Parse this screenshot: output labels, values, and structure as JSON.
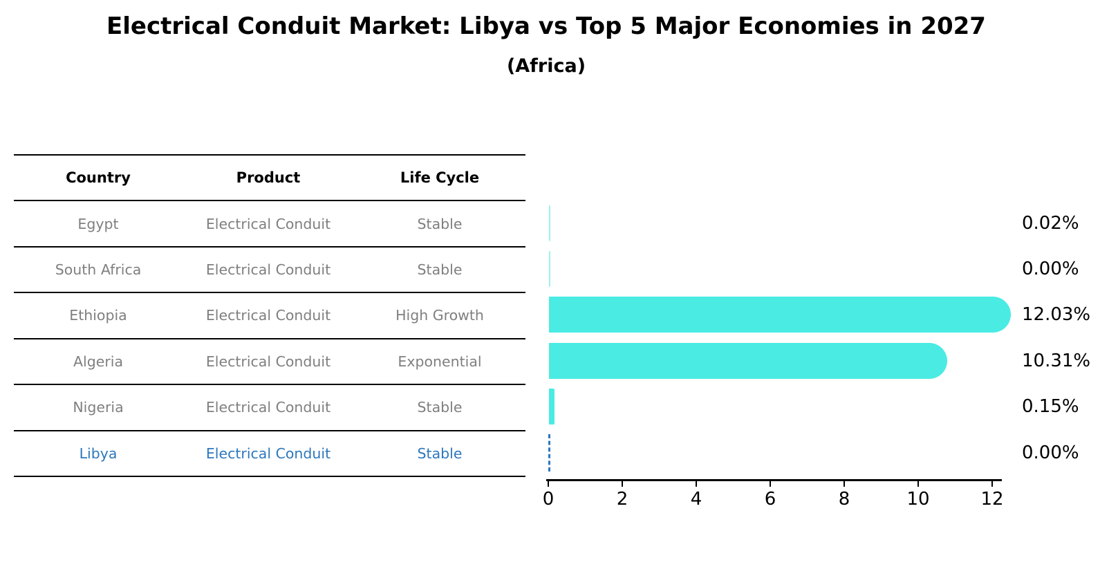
{
  "title": "Electrical Conduit Market: Libya vs Top 5 Major Economies in 2027",
  "subtitle": "(Africa)",
  "table": {
    "headers": [
      "Country",
      "Product",
      "Life Cycle"
    ],
    "rows": [
      {
        "country": "Egypt",
        "product": "Electrical Conduit",
        "life_cycle": "Stable",
        "highlight": false
      },
      {
        "country": "South Africa",
        "product": "Electrical Conduit",
        "life_cycle": "Stable",
        "highlight": false
      },
      {
        "country": "Ethiopia",
        "product": "Electrical Conduit",
        "life_cycle": "High Growth",
        "highlight": false
      },
      {
        "country": "Algeria",
        "product": "Electrical Conduit",
        "life_cycle": "Exponential",
        "highlight": false
      },
      {
        "country": "Nigeria",
        "product": "Electrical Conduit",
        "life_cycle": "Stable",
        "highlight": false
      },
      {
        "country": "Libya",
        "product": "Electrical Conduit",
        "life_cycle": "Stable",
        "highlight": true
      }
    ]
  },
  "chart_data": {
    "type": "bar",
    "orientation": "horizontal",
    "title": "Electrical Conduit Market: Libya vs Top 5 Major Economies in 2027",
    "subtitle": "(Africa)",
    "categories": [
      "Egypt",
      "South Africa",
      "Ethiopia",
      "Algeria",
      "Nigeria",
      "Libya"
    ],
    "values": [
      0.02,
      0.0,
      12.03,
      10.31,
      0.15,
      0.0
    ],
    "labels": [
      "0.02%",
      "0.00%",
      "12.03%",
      "10.31%",
      "0.15%",
      "0.00%"
    ],
    "xticks": [
      0,
      2,
      4,
      6,
      8,
      10,
      12
    ],
    "xlim": [
      0,
      12.6
    ],
    "xlabel": "",
    "ylabel": "",
    "grid": false,
    "legend": "none",
    "bar_color": "#4aebe3",
    "small_bar_color": "#9df1ec",
    "highlight_color": "#2d78be",
    "highlight_index": 5,
    "highlight_style": "dashed-zero-line"
  },
  "colors": {
    "background": "#ffffff",
    "text": "#000000",
    "muted_text": "#7f7f7f",
    "accent_bar": "#4aebe3",
    "highlight_blue": "#2d78be"
  }
}
